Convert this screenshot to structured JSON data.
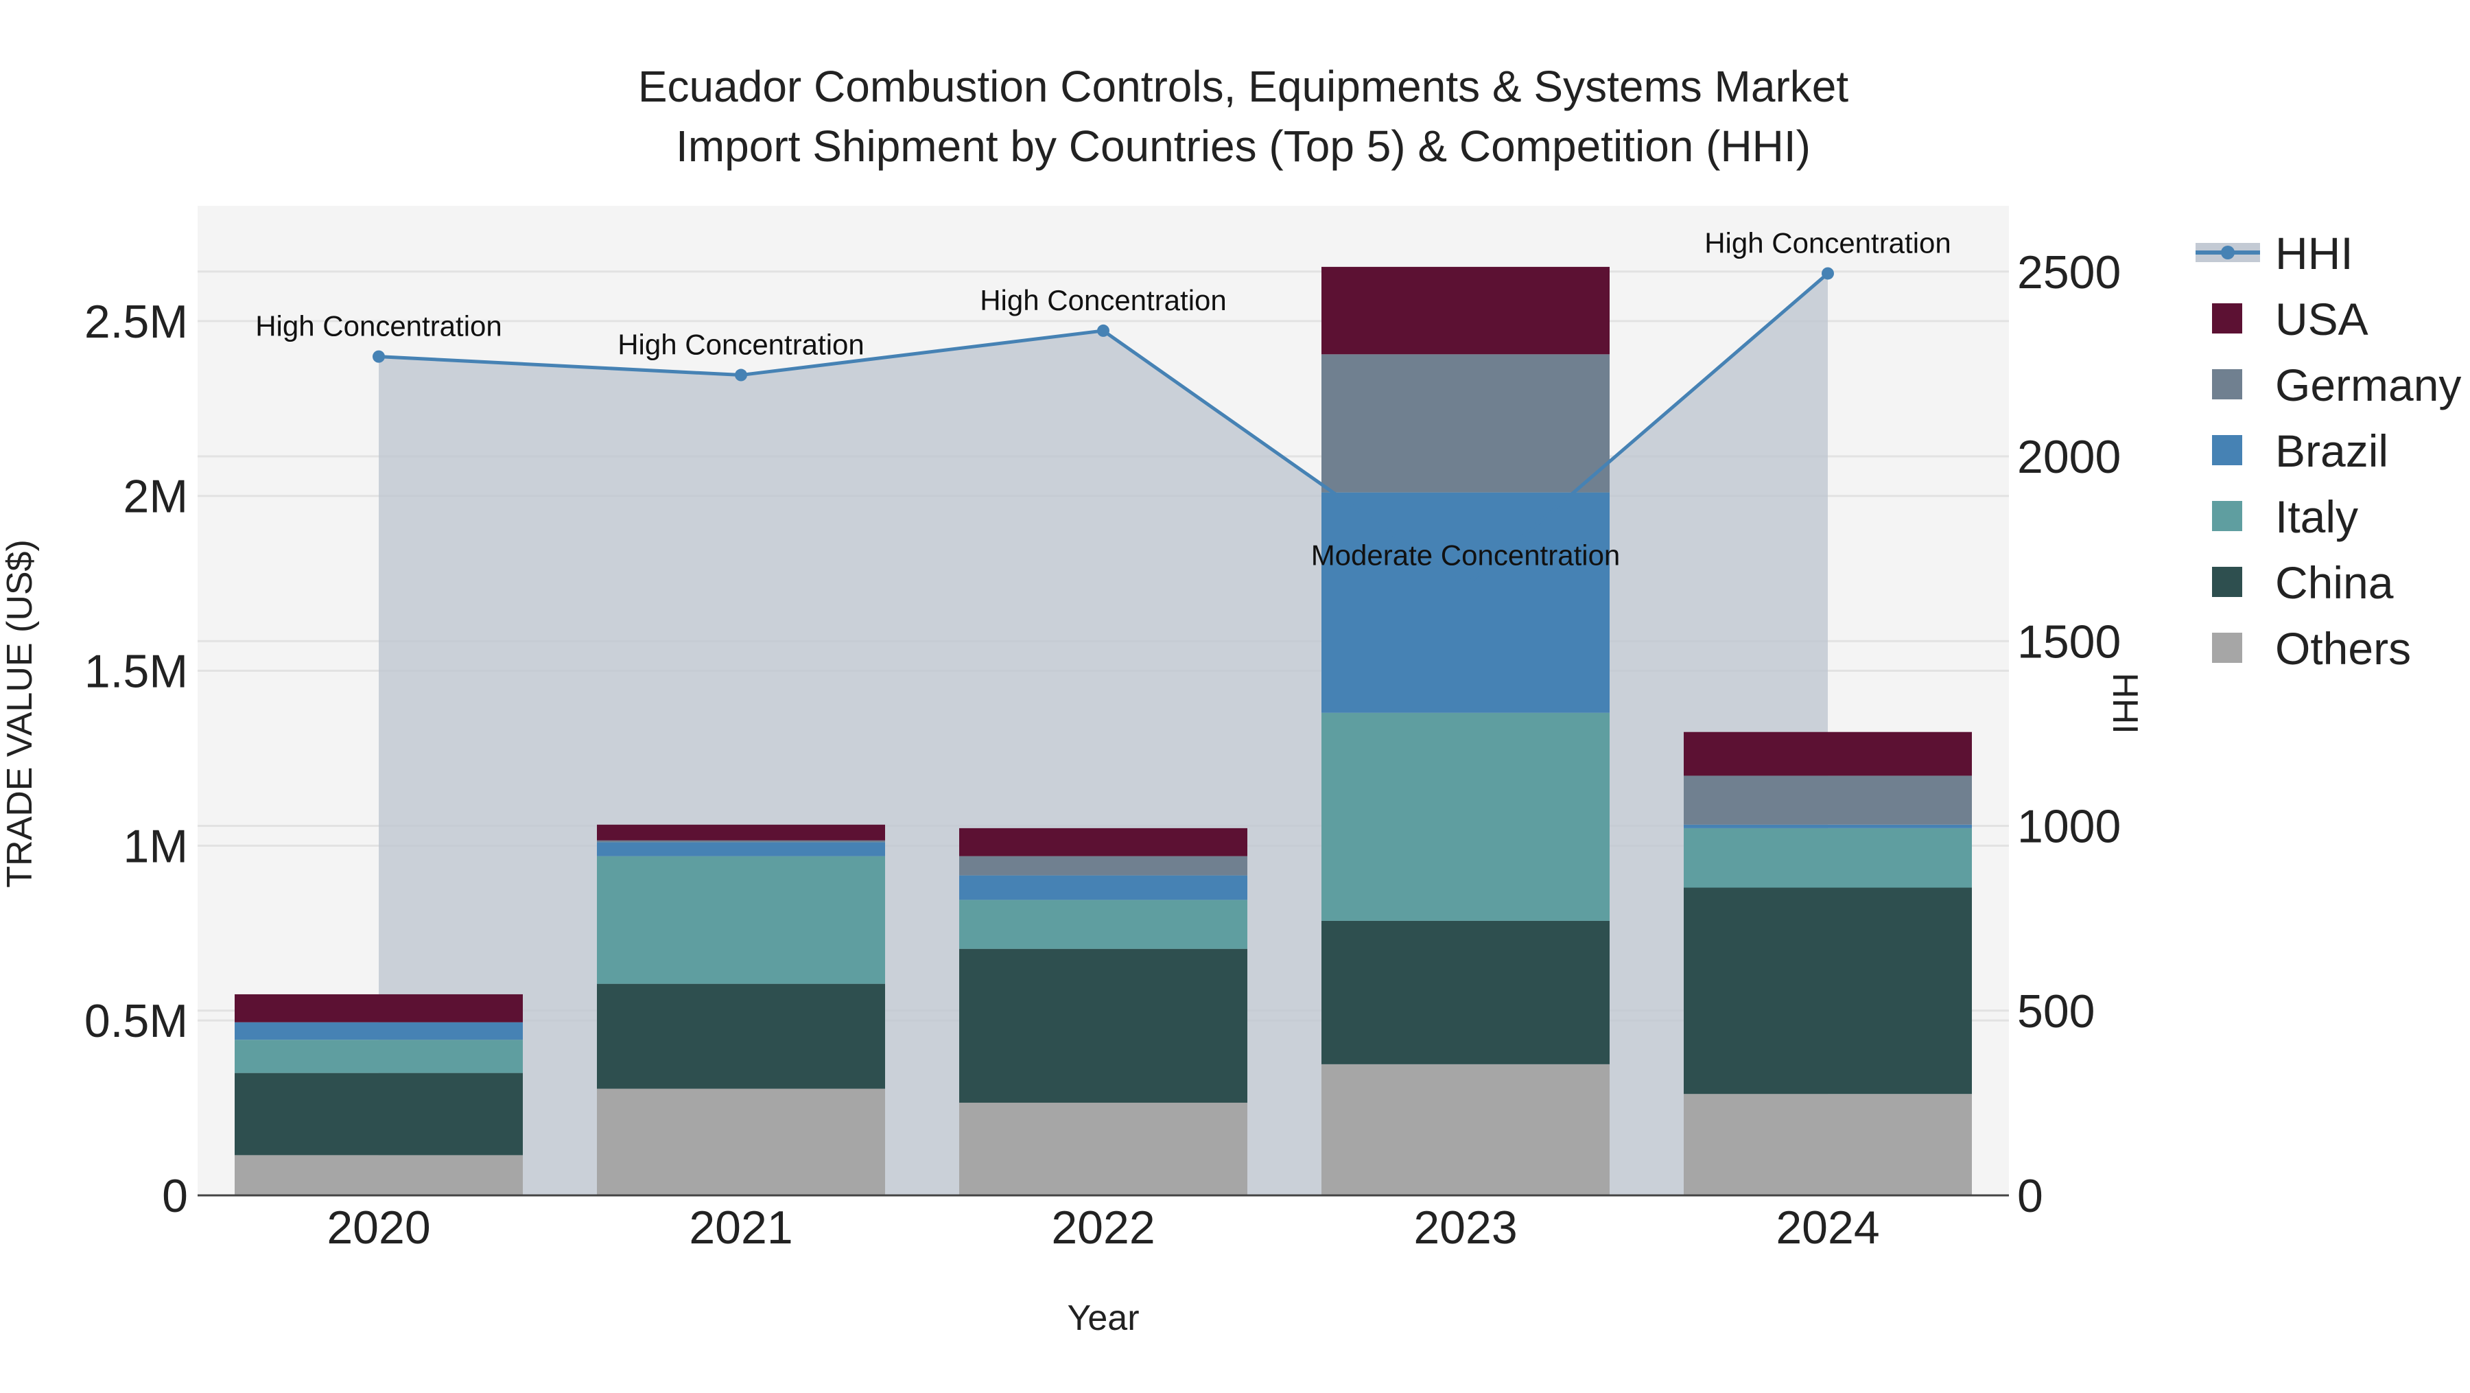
{
  "chart_data": {
    "type": "bar",
    "stacked": true,
    "title": "Ecuador Combustion Controls, Equipments & Systems Market",
    "subtitle": "Import Shipment by Countries (Top 5) & Competition (HHI)",
    "xlabel": "Year",
    "ylabel": "TRADE VALUE (US$)",
    "y2label": "HHI",
    "categories": [
      "2020",
      "2021",
      "2022",
      "2023",
      "2024"
    ],
    "ylim": [
      0,
      2800000
    ],
    "y2lim": [
      0,
      2650
    ],
    "y_ticks": [
      0,
      500000,
      1000000,
      1500000,
      2000000,
      2500000
    ],
    "y_tick_labels": [
      "0",
      "0.5M",
      "1M",
      "1.5M",
      "2M",
      "2.5M"
    ],
    "y2_ticks": [
      0,
      500,
      1000,
      1500,
      2000,
      2500
    ],
    "y2_tick_labels": [
      "0",
      "500",
      "1000",
      "1500",
      "2000",
      "2500"
    ],
    "series": [
      {
        "name": "Others",
        "color": "#a6a6a6",
        "values": [
          115000,
          305000,
          265000,
          375000,
          290000
        ]
      },
      {
        "name": "China",
        "color": "#2e4f4f",
        "values": [
          235000,
          300000,
          440000,
          410000,
          590000
        ]
      },
      {
        "name": "Italy",
        "color": "#5f9ea0",
        "values": [
          95000,
          365000,
          140000,
          595000,
          170000
        ]
      },
      {
        "name": "Brazil",
        "color": "#4682b4",
        "values": [
          50000,
          40000,
          70000,
          630000,
          10000
        ]
      },
      {
        "name": "Germany",
        "color": "#708090",
        "values": [
          0,
          5000,
          55000,
          395000,
          140000
        ]
      },
      {
        "name": "USA",
        "color": "#5c1133",
        "values": [
          80000,
          45000,
          80000,
          250000,
          125000
        ]
      }
    ],
    "hhi": {
      "name": "HHI",
      "color": "#4682b4",
      "values": [
        2270,
        2220,
        2340,
        1650,
        2495
      ],
      "annotations": [
        "High Concentration",
        "High Concentration",
        "High Concentration",
        "Moderate Concentration",
        "High Concentration"
      ]
    },
    "legend": {
      "position": "right",
      "order": [
        "HHI",
        "USA",
        "Germany",
        "Brazil",
        "Italy",
        "China",
        "Others"
      ]
    }
  }
}
